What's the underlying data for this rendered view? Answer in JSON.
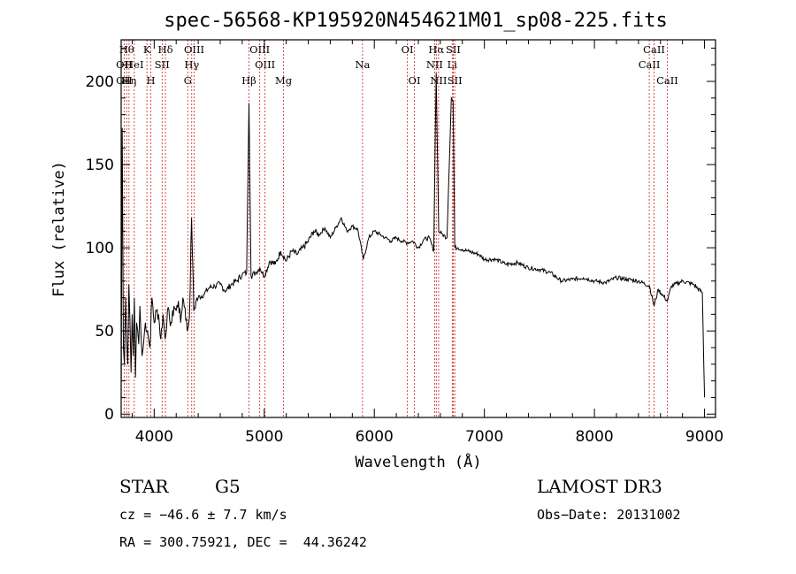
{
  "chart_data": {
    "type": "line",
    "title": "spec-56568-KP195920N454621M01_sp08-225.fits",
    "xlabel": "Wavelength (Å)",
    "ylabel": "Flux (relative)",
    "xlim": [
      3700,
      9100
    ],
    "ylim": [
      -2,
      225
    ],
    "xticks": [
      4000,
      5000,
      6000,
      7000,
      8000,
      9000
    ],
    "yticks": [
      0,
      50,
      100,
      150,
      200
    ],
    "grid": false,
    "series": [
      {
        "x": [
          3700,
          3710,
          3720,
          3730,
          3740,
          3750,
          3760,
          3770,
          3780,
          3790,
          3800,
          3810,
          3820,
          3830,
          3840,
          3850,
          3860,
          3870,
          3880,
          3890,
          3900,
          3920,
          3940,
          3960,
          3980,
          4000,
          4020,
          4040,
          4060,
          4080,
          4100,
          4120,
          4140,
          4160,
          4180,
          4200,
          4220,
          4240,
          4260,
          4280,
          4300,
          4320,
          4340,
          4360,
          4380,
          4400,
          4450,
          4500,
          4550,
          4600,
          4650,
          4700,
          4750,
          4800,
          4840,
          4861,
          4880,
          4920,
          4960,
          5000,
          5050,
          5100,
          5150,
          5200,
          5250,
          5300,
          5350,
          5400,
          5450,
          5500,
          5550,
          5600,
          5650,
          5700,
          5750,
          5800,
          5850,
          5900,
          5950,
          6000,
          6050,
          6100,
          6150,
          6200,
          6250,
          6300,
          6350,
          6400,
          6450,
          6500,
          6540,
          6562,
          6585,
          6620,
          6660,
          6700,
          6716,
          6731,
          6760,
          6800,
          6850,
          6900,
          6950,
          7000,
          7100,
          7200,
          7300,
          7400,
          7500,
          7600,
          7700,
          7800,
          7900,
          8000,
          8100,
          8200,
          8300,
          8400,
          8500,
          8542,
          8580,
          8662,
          8700,
          8800,
          8900,
          8980,
          9000
        ],
        "values": [
          8,
          172,
          40,
          30,
          70,
          45,
          30,
          78,
          55,
          25,
          60,
          35,
          70,
          22,
          55,
          50,
          42,
          65,
          48,
          35,
          40,
          55,
          50,
          40,
          70,
          55,
          62,
          60,
          45,
          60,
          45,
          62,
          57,
          55,
          65,
          62,
          68,
          55,
          70,
          64,
          50,
          58,
          118,
          62,
          68,
          70,
          72,
          76,
          77,
          78,
          74,
          78,
          80,
          84,
          85,
          187,
          83,
          85,
          88,
          83,
          92,
          90,
          98,
          92,
          98,
          96,
          100,
          104,
          110,
          108,
          112,
          106,
          112,
          118,
          110,
          113,
          111,
          93,
          106,
          110,
          108,
          106,
          104,
          106,
          104,
          103,
          104,
          100,
          105,
          106,
          98,
          205,
          110,
          108,
          106,
          190,
          188,
          100,
          100,
          99,
          98,
          97,
          96,
          93,
          93,
          90,
          91,
          88,
          87,
          85,
          80,
          81,
          82,
          80,
          79,
          82,
          81,
          80,
          77,
          65,
          75,
          68,
          77,
          80,
          78,
          73,
          10
        ]
      }
    ],
    "annotations": [
      {
        "label": "OII",
        "x": 3727,
        "row": 1
      },
      {
        "label": "OII",
        "x": 3727,
        "row": 2
      },
      {
        "label": "Hθ",
        "x": 3750,
        "row": 0
      },
      {
        "label": "Hη",
        "x": 3771,
        "row": 2
      },
      {
        "label": "HeI",
        "x": 3819,
        "row": 1
      },
      {
        "label": "K",
        "x": 3934,
        "row": 0
      },
      {
        "label": "H",
        "x": 3969,
        "row": 2
      },
      {
        "label": "Hδ",
        "x": 4102,
        "row": 0
      },
      {
        "label": "SII",
        "x": 4072,
        "row": 1
      },
      {
        "label": "OIII",
        "x": 4363,
        "row": 0
      },
      {
        "label": "Hγ",
        "x": 4341,
        "row": 1
      },
      {
        "label": "G",
        "x": 4305,
        "row": 2
      },
      {
        "label": "Hβ",
        "x": 4861,
        "row": 2
      },
      {
        "label": "OIII",
        "x": 4959,
        "row": 0
      },
      {
        "label": "OIII",
        "x": 5007,
        "row": 1
      },
      {
        "label": "Mg",
        "x": 5175,
        "row": 2
      },
      {
        "label": "Na",
        "x": 5893,
        "row": 1
      },
      {
        "label": "OI",
        "x": 6300,
        "row": 0
      },
      {
        "label": "OI",
        "x": 6364,
        "row": 2
      },
      {
        "label": "Hα",
        "x": 6563,
        "row": 0
      },
      {
        "label": "NII",
        "x": 6548,
        "row": 1
      },
      {
        "label": "NII",
        "x": 6584,
        "row": 2
      },
      {
        "label": "SII",
        "x": 6717,
        "row": 0
      },
      {
        "label": "Li",
        "x": 6708,
        "row": 1
      },
      {
        "label": "SII",
        "x": 6731,
        "row": 2
      },
      {
        "label": "CaII",
        "x": 8498,
        "row": 1
      },
      {
        "label": "CaII",
        "x": 8542,
        "row": 0
      },
      {
        "label": "CaII",
        "x": 8662,
        "row": 2
      }
    ]
  },
  "info": {
    "object_class": "STAR",
    "subclass": "G5",
    "survey": "LAMOST DR3",
    "cz": "cz = −46.6 ± 7.7 km/s",
    "obs_date": "Obs−Date: 20131002",
    "coords": "RA = 300.75921, DEC =  44.36242"
  },
  "colors": {
    "line_marker": "#cc2222",
    "spectrum": "#000000",
    "axes": "#000000"
  }
}
